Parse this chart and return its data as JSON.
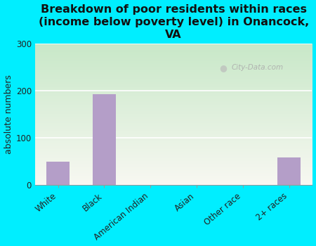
{
  "title": "Breakdown of poor residents within races\n(income below poverty level) in Onancock,\nVA",
  "categories": [
    "White",
    "Black",
    "American Indian",
    "Asian",
    "Other race",
    "2+ races"
  ],
  "values": [
    50,
    192,
    0,
    0,
    0,
    58
  ],
  "bar_color": "#b49ec8",
  "ylabel": "absolute numbers",
  "ylim": [
    0,
    300
  ],
  "yticks": [
    0,
    100,
    200,
    300
  ],
  "background_color": "#00eeff",
  "plot_bg_top_left": "#c8e8c8",
  "plot_bg_bottom_right": "#f8f8f2",
  "watermark": "City-Data.com",
  "title_fontsize": 11.5,
  "ylabel_fontsize": 9,
  "tick_fontsize": 8.5
}
